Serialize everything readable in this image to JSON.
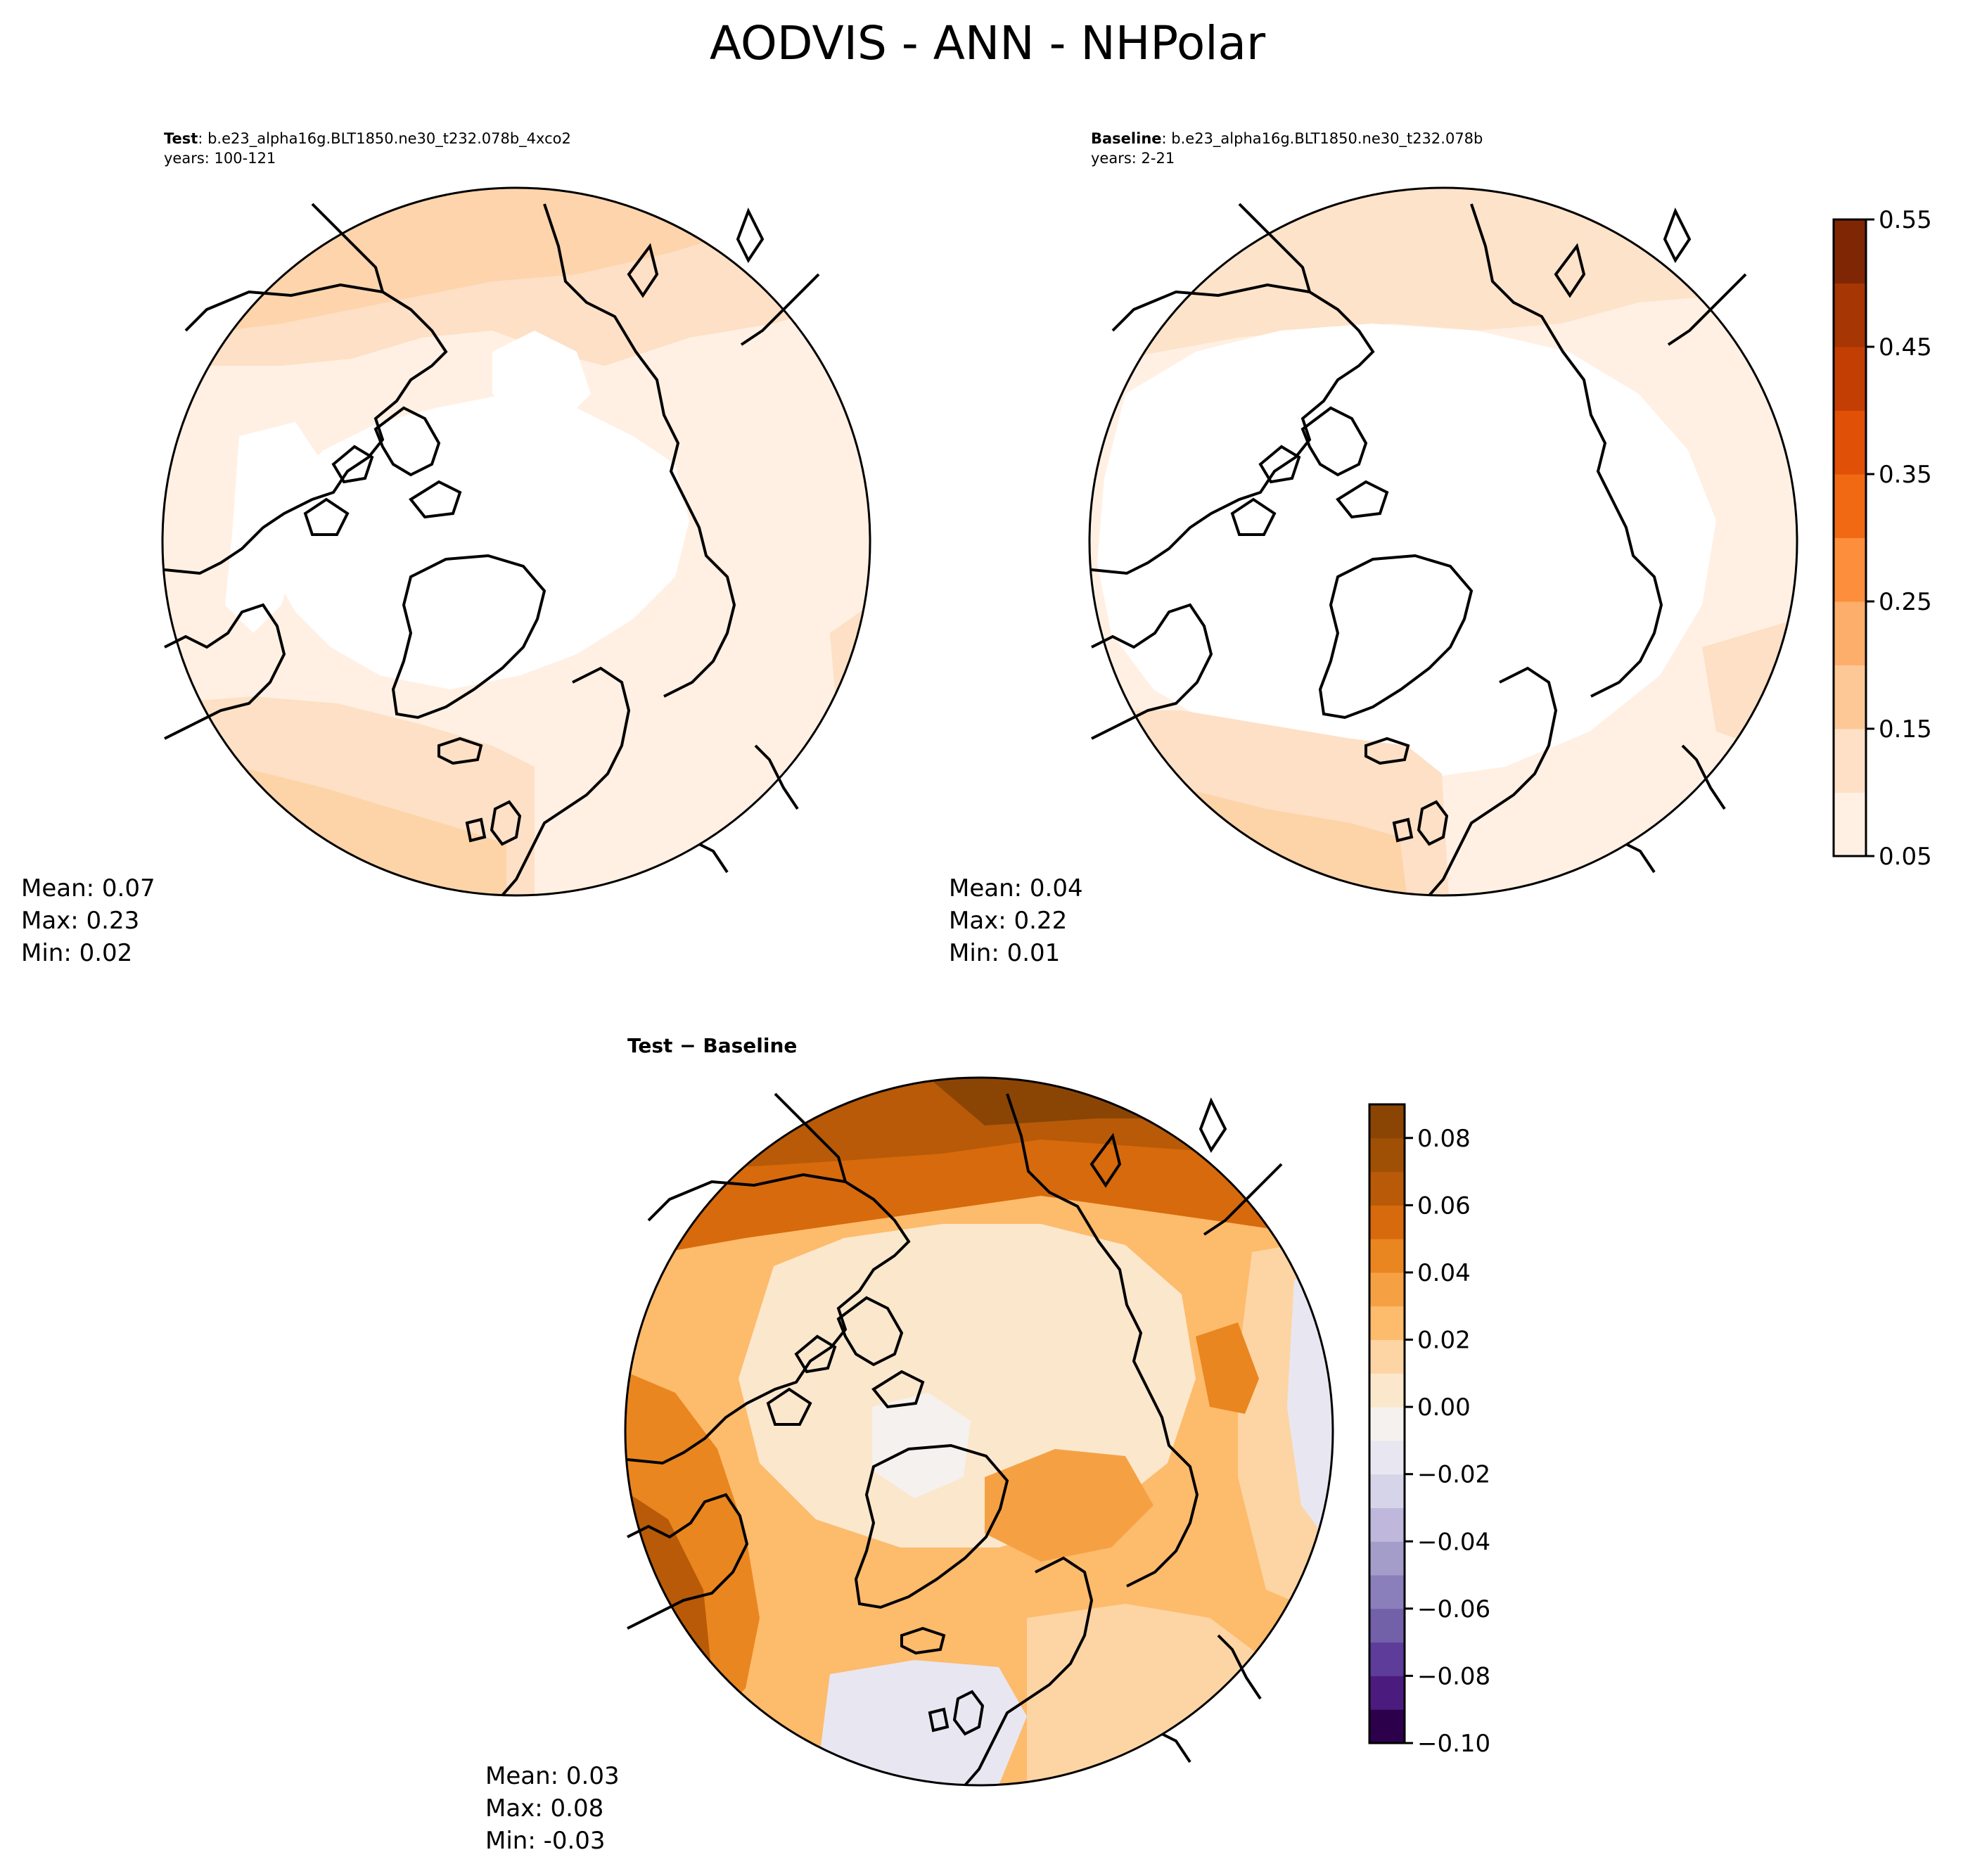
{
  "figure": {
    "suptitle": "AODVIS - ANN - NHPolar"
  },
  "panels": [
    {
      "id": "test",
      "title_bold": "Test",
      "title_case": ": b.e23_alpha16g.BLT1850.ne30_t232.078b_4xco2",
      "years": "years: 100-121",
      "stats": {
        "mean": "Mean:  0.07",
        "max": "Max:  0.23",
        "min": "Min:  0.02"
      }
    },
    {
      "id": "baseline",
      "title_bold": "Baseline",
      "title_case": ": b.e23_alpha16g.BLT1850.ne30_t232.078b",
      "years": "years: 2-21",
      "stats": {
        "mean": "Mean:  0.04",
        "max": "Max:  0.22",
        "min": "Min:  0.01"
      }
    },
    {
      "id": "difference",
      "title_bold": "Test − Baseline",
      "stats": {
        "mean": "Mean:  0.03",
        "max": "Max:  0.08",
        "min": "Min: -0.03"
      }
    }
  ],
  "colorbars": {
    "main": {
      "levels": [
        0.05,
        0.1,
        0.15,
        0.2,
        0.25,
        0.3,
        0.35,
        0.4,
        0.45,
        0.5,
        0.55
      ],
      "tick_labels": [
        "0.05",
        "0.15",
        "0.25",
        "0.35",
        "0.45",
        "0.55"
      ],
      "tick_values": [
        0.05,
        0.15,
        0.25,
        0.35,
        0.45,
        0.55
      ],
      "colors": [
        "#fff0e3",
        "#fde0c5",
        "#fdc896",
        "#fdae6b",
        "#fd8e3c",
        "#f16913",
        "#e05007",
        "#c33e03",
        "#a63603",
        "#7f2704"
      ]
    },
    "diff": {
      "levels": [
        -0.1,
        -0.09,
        -0.08,
        -0.07,
        -0.06,
        -0.05,
        -0.04,
        -0.03,
        -0.02,
        -0.01,
        0.0,
        0.01,
        0.02,
        0.03,
        0.04,
        0.05,
        0.06,
        0.07,
        0.08,
        0.09
      ],
      "tick_labels": [
        "−0.10",
        "−0.08",
        "−0.06",
        "−0.04",
        "−0.02",
        "0.00",
        "0.02",
        "0.04",
        "0.06",
        "0.08"
      ],
      "tick_values": [
        -0.1,
        -0.08,
        -0.06,
        -0.04,
        -0.02,
        0.0,
        0.02,
        0.04,
        0.06,
        0.08
      ],
      "colors": [
        "#2d004b",
        "#4b1b7e",
        "#5e3c99",
        "#7260a8",
        "#8a7fba",
        "#a49dca",
        "#bfb8dc",
        "#d6d4e8",
        "#e8e7f1",
        "#f5f1ee",
        "#fbe7cc",
        "#fdd5a4",
        "#fdbb6c",
        "#f5a143",
        "#e9861f",
        "#d76a0c",
        "#b85a07",
        "#a05005",
        "#8a4505"
      ]
    }
  }
}
